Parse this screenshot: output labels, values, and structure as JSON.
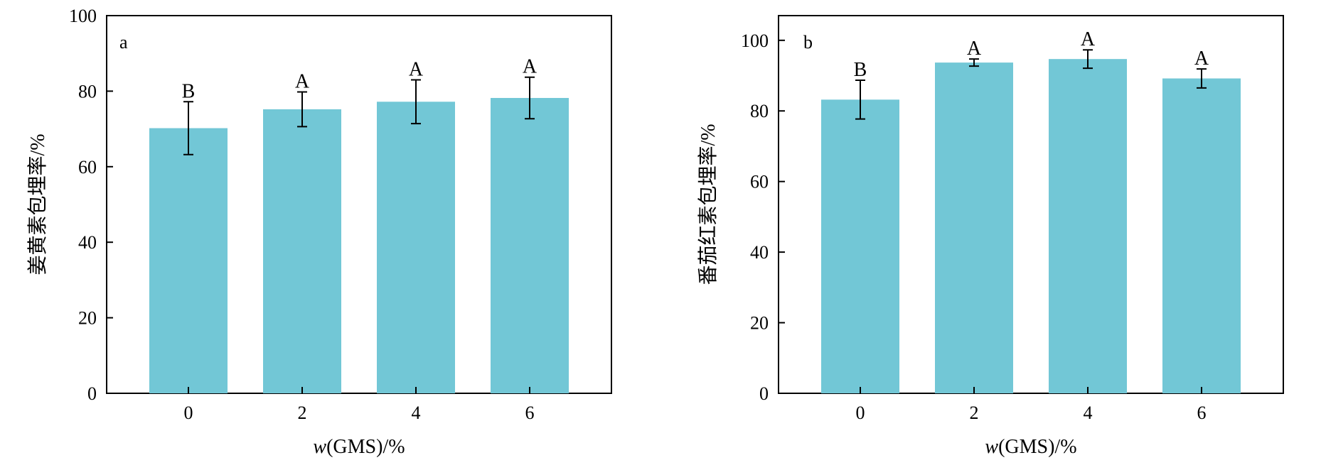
{
  "chart_data": [
    {
      "type": "bar",
      "panel_label": "a",
      "categories": [
        "0",
        "2",
        "4",
        "6"
      ],
      "values": [
        70.2,
        75.2,
        77.2,
        78.2
      ],
      "errors": [
        7.0,
        4.6,
        5.8,
        5.5
      ],
      "significance": [
        "B",
        "A",
        "A",
        "A"
      ],
      "xlabel_italic": "w",
      "xlabel_rest": "(GMS)/%",
      "ylabel": "姜黄素包埋率/%",
      "ylim": [
        0,
        100
      ],
      "yticks": [
        0,
        20,
        40,
        60,
        80,
        100
      ],
      "bar_color": "#72c7d6",
      "grid": false
    },
    {
      "type": "bar",
      "panel_label": "b",
      "categories": [
        "0",
        "2",
        "4",
        "6"
      ],
      "values": [
        83.2,
        93.7,
        94.7,
        89.2
      ],
      "errors": [
        5.5,
        1.0,
        2.6,
        2.7
      ],
      "significance": [
        "B",
        "A",
        "A",
        "A"
      ],
      "xlabel_italic": "w",
      "xlabel_rest": "(GMS)/%",
      "ylabel": "番茄红素包埋率/%",
      "ylim": [
        0,
        107
      ],
      "yticks": [
        0,
        20,
        40,
        60,
        80,
        100
      ],
      "bar_color": "#72c7d6",
      "grid": false
    }
  ]
}
